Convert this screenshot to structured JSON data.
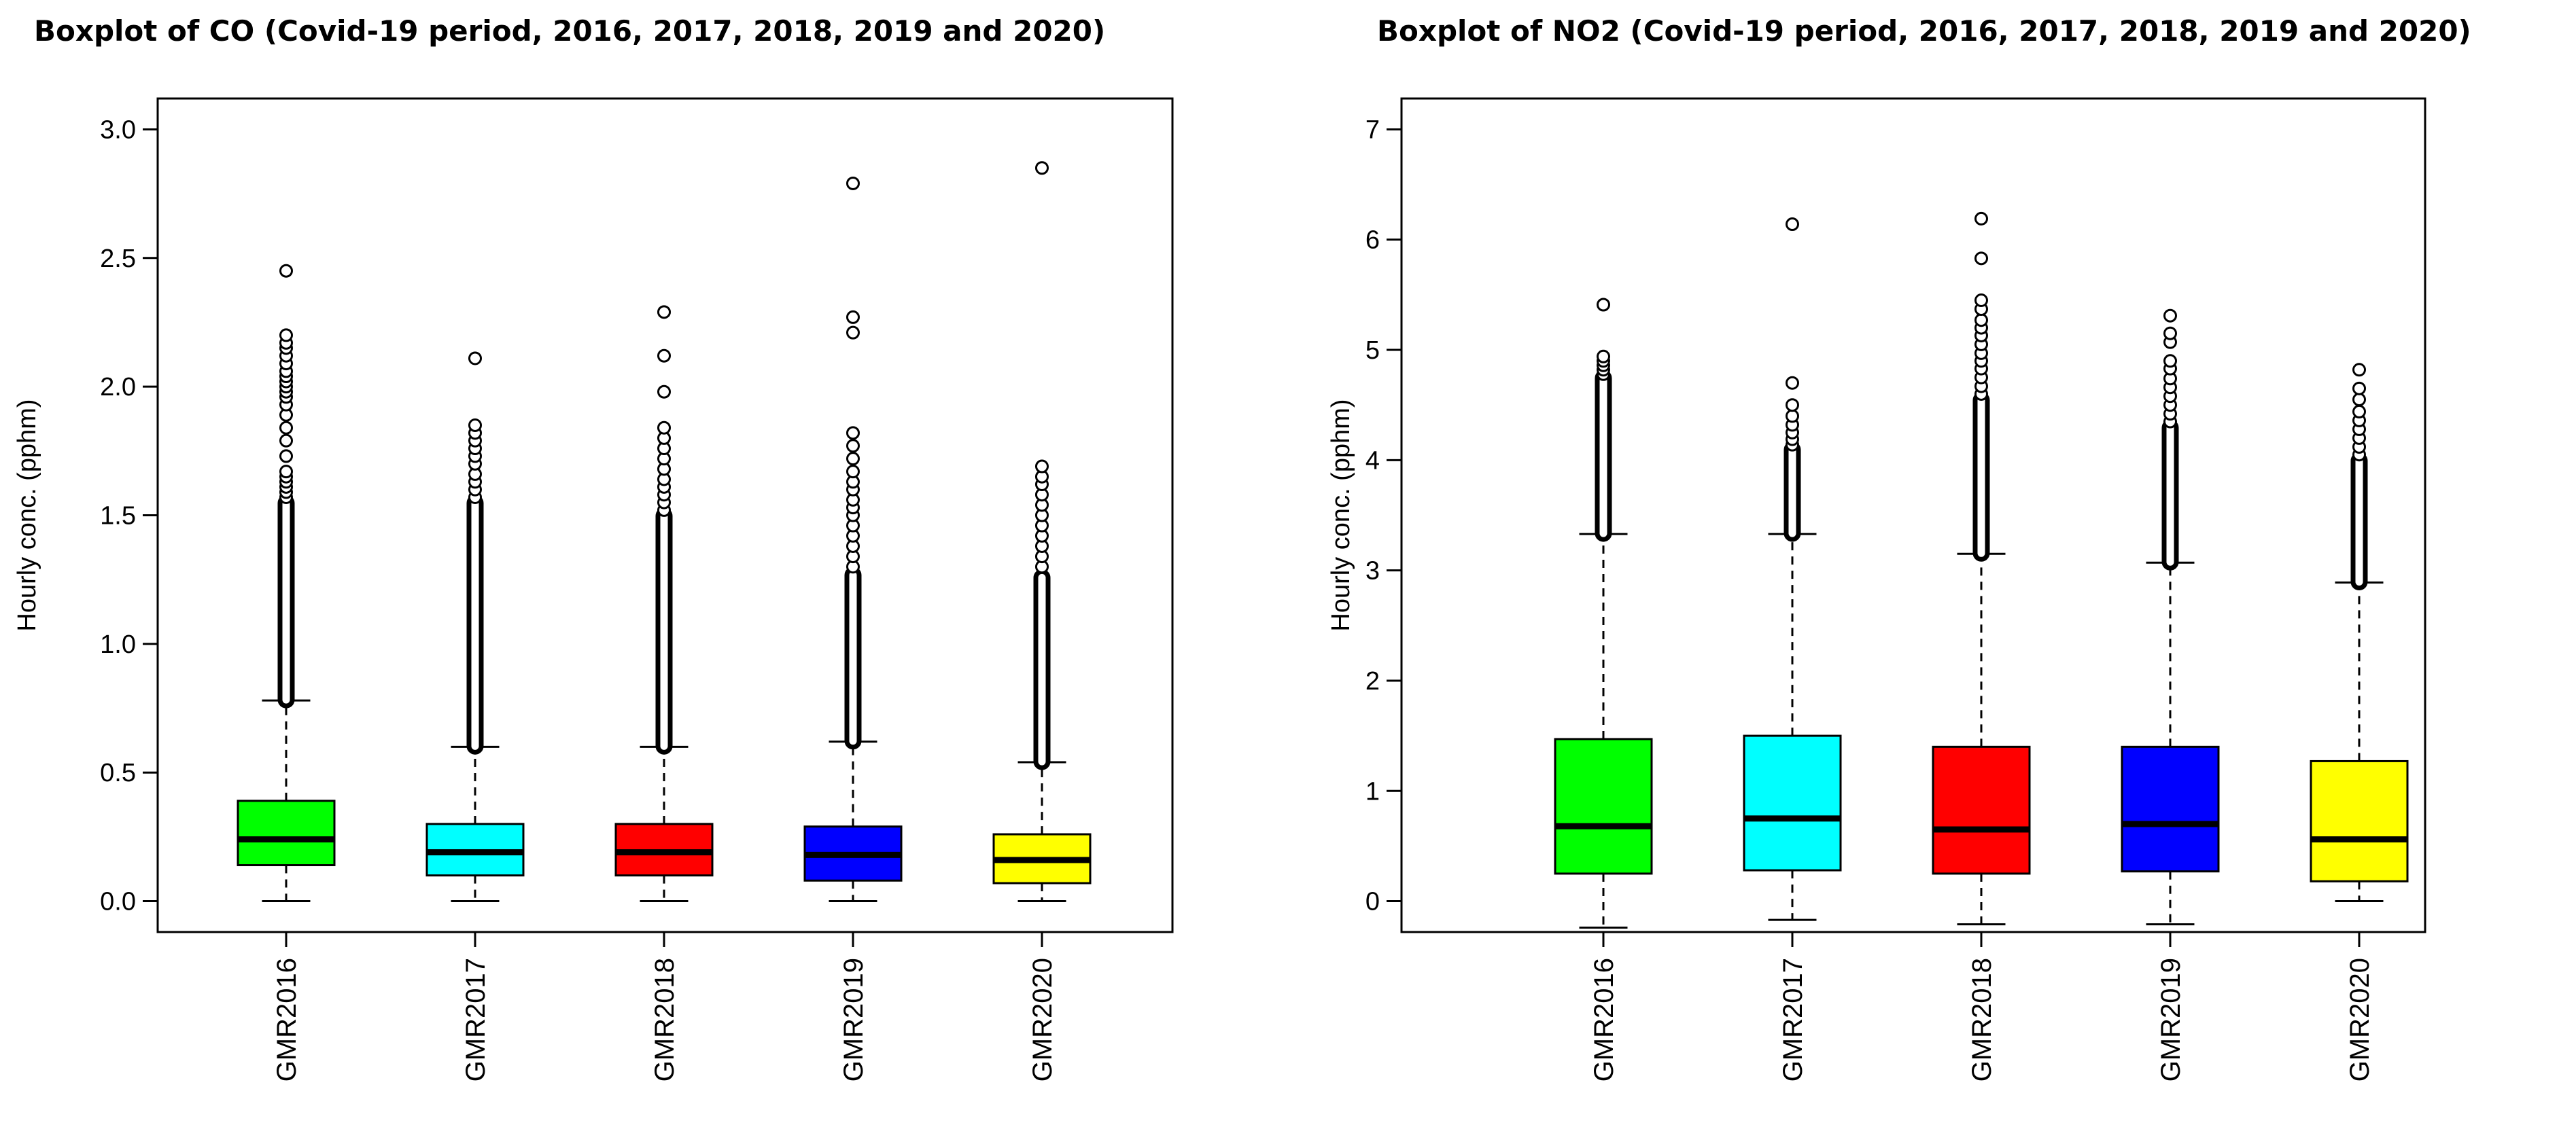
{
  "chart_data": [
    {
      "type": "boxplot",
      "title": "Boxplot of CO (Covid-19 period, 2016, 2017, 2018, 2019 and 2020)",
      "ylabel": "Hourly conc. (pphm)",
      "xlabel": "",
      "ylim": [
        -0.12,
        3.12
      ],
      "yticks": [
        "0.0",
        "0.5",
        "1.0",
        "1.5",
        "2.0",
        "2.5",
        "3.0"
      ],
      "grid": false,
      "categories": [
        "GMR2016",
        "GMR2017",
        "GMR2018",
        "GMR2019",
        "GMR2020"
      ],
      "colors": [
        "#00ff00",
        "#00ffff",
        "#ff0000",
        "#0000ff",
        "#ffff00"
      ],
      "boxes": [
        {
          "min": 0.0,
          "q1": 0.14,
          "median": 0.24,
          "q3": 0.39,
          "whisker_high": 0.78,
          "outlier_from": 0.78,
          "outlier_to": 1.55,
          "outliers": [
            1.57,
            1.59,
            1.61,
            1.63,
            1.65,
            1.67,
            1.73,
            1.79,
            1.84,
            1.89,
            1.93,
            1.96,
            1.98,
            2.0,
            2.02,
            2.04,
            2.06,
            2.09,
            2.12,
            2.15,
            2.17,
            2.2,
            2.45
          ]
        },
        {
          "min": 0.0,
          "q1": 0.1,
          "median": 0.19,
          "q3": 0.3,
          "whisker_high": 0.6,
          "outlier_from": 0.6,
          "outlier_to": 1.55,
          "outliers": [
            1.57,
            1.6,
            1.63,
            1.66,
            1.7,
            1.73,
            1.76,
            1.79,
            1.82,
            1.85,
            2.11
          ]
        },
        {
          "min": 0.0,
          "q1": 0.1,
          "median": 0.19,
          "q3": 0.3,
          "whisker_high": 0.6,
          "outlier_from": 0.6,
          "outlier_to": 1.5,
          "outliers": [
            1.52,
            1.55,
            1.58,
            1.61,
            1.64,
            1.68,
            1.72,
            1.76,
            1.8,
            1.84,
            1.98,
            2.12,
            2.29
          ]
        },
        {
          "min": 0.0,
          "q1": 0.08,
          "median": 0.18,
          "q3": 0.29,
          "whisker_high": 0.62,
          "outlier_from": 0.62,
          "outlier_to": 1.27,
          "outliers": [
            1.3,
            1.34,
            1.38,
            1.42,
            1.46,
            1.5,
            1.53,
            1.56,
            1.6,
            1.63,
            1.67,
            1.72,
            1.77,
            1.82,
            2.21,
            2.27,
            2.79
          ]
        },
        {
          "min": 0.0,
          "q1": 0.07,
          "median": 0.16,
          "q3": 0.26,
          "whisker_high": 0.54,
          "outlier_from": 0.54,
          "outlier_to": 1.26,
          "outliers": [
            1.3,
            1.34,
            1.38,
            1.42,
            1.46,
            1.5,
            1.54,
            1.58,
            1.62,
            1.65,
            1.69,
            2.85
          ]
        }
      ]
    },
    {
      "type": "boxplot",
      "title": "Boxplot of NO2 (Covid-19 period, 2016, 2017, 2018, 2019 and 2020)",
      "ylabel": "Hourly conc. (pphm)",
      "xlabel": "",
      "ylim": [
        -0.28,
        7.28
      ],
      "yticks": [
        "0",
        "1",
        "2",
        "3",
        "4",
        "5",
        "6",
        "7"
      ],
      "grid": false,
      "categories": [
        "GMR2016",
        "GMR2017",
        "GMR2018",
        "GMR2019",
        "GMR2020"
      ],
      "colors": [
        "#00ff00",
        "#00ffff",
        "#ff0000",
        "#0000ff",
        "#ffff00"
      ],
      "boxes": [
        {
          "min": -0.24,
          "q1": 0.25,
          "median": 0.68,
          "q3": 1.47,
          "whisker_high": 3.33,
          "outlier_from": 3.33,
          "outlier_to": 4.75,
          "outliers": [
            4.78,
            4.82,
            4.86,
            4.9,
            4.94,
            5.41
          ]
        },
        {
          "min": -0.17,
          "q1": 0.28,
          "median": 0.75,
          "q3": 1.5,
          "whisker_high": 3.33,
          "outlier_from": 3.33,
          "outlier_to": 4.1,
          "outliers": [
            4.14,
            4.19,
            4.25,
            4.32,
            4.4,
            4.5,
            4.7,
            6.14
          ]
        },
        {
          "min": -0.21,
          "q1": 0.25,
          "median": 0.65,
          "q3": 1.4,
          "whisker_high": 3.15,
          "outlier_from": 3.15,
          "outlier_to": 4.55,
          "outliers": [
            4.6,
            4.67,
            4.75,
            4.83,
            4.9,
            4.97,
            5.05,
            5.13,
            5.2,
            5.27,
            5.37,
            5.45,
            5.83,
            6.19
          ]
        },
        {
          "min": -0.21,
          "q1": 0.27,
          "median": 0.7,
          "q3": 1.4,
          "whisker_high": 3.07,
          "outlier_from": 3.07,
          "outlier_to": 4.3,
          "outliers": [
            4.35,
            4.42,
            4.5,
            4.58,
            4.66,
            4.74,
            4.83,
            4.9,
            5.07,
            5.15,
            5.31
          ]
        },
        {
          "min": 0.0,
          "q1": 0.18,
          "median": 0.56,
          "q3": 1.27,
          "whisker_high": 2.89,
          "outlier_from": 2.89,
          "outlier_to": 4.0,
          "outliers": [
            4.05,
            4.12,
            4.2,
            4.28,
            4.36,
            4.44,
            4.55,
            4.65,
            4.82
          ]
        }
      ]
    }
  ]
}
